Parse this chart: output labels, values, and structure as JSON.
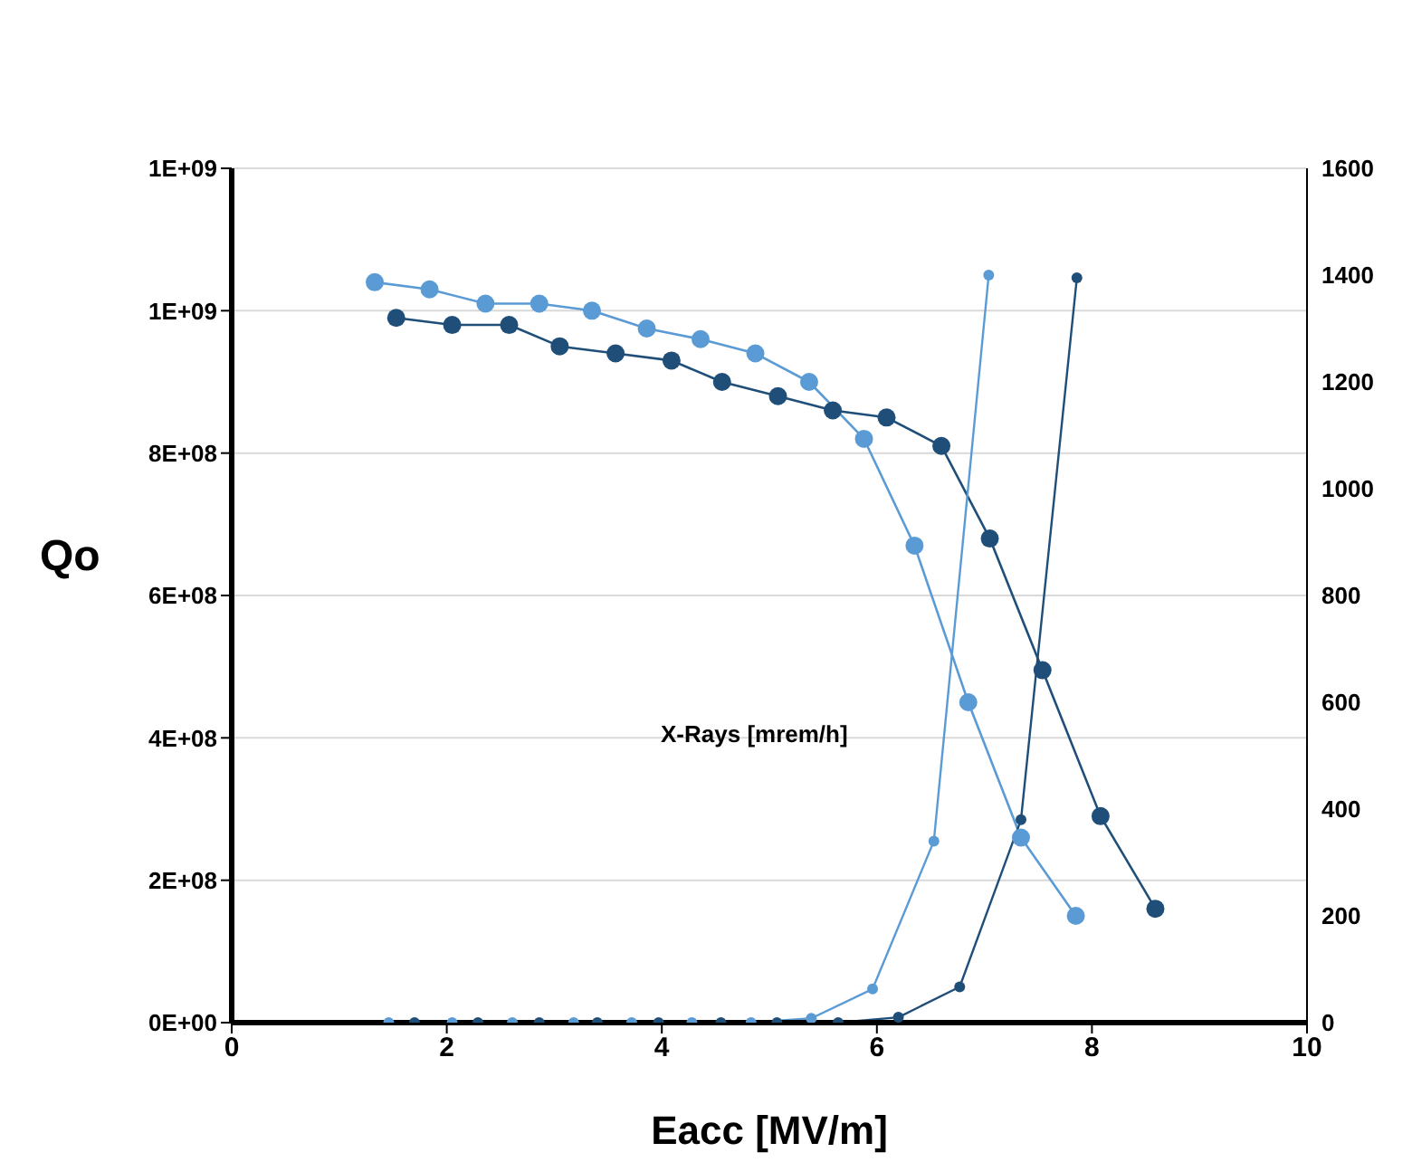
{
  "chart_data": {
    "type": "line",
    "xlabel": "Eacc [MV/m]",
    "ylabel": "Qo",
    "xlim": [
      0,
      10
    ],
    "xticks": [
      0,
      2,
      4,
      6,
      8,
      10
    ],
    "ylim": [
      0,
      1200000000
    ],
    "yticks": [
      {
        "value": 0,
        "label": "0E+00"
      },
      {
        "value": 200000000,
        "label": "2E+08"
      },
      {
        "value": 400000000,
        "label": "4E+08"
      },
      {
        "value": 600000000,
        "label": "6E+08"
      },
      {
        "value": 800000000,
        "label": "8E+08"
      },
      {
        "value": 1000000000,
        "label": "1E+09"
      },
      {
        "value": 1200000000,
        "label": "1E+09"
      }
    ],
    "y2lim": [
      0,
      1600
    ],
    "y2ticks": [
      0,
      200,
      400,
      600,
      800,
      1000,
      1200,
      1400,
      1600
    ],
    "grid": "y",
    "marker": "circle",
    "legend": false,
    "annotations": [
      "X-Rays [mrem/h]"
    ],
    "series": [
      {
        "color": "#5b9bd5",
        "x": [
          1.33,
          1.84,
          2.36,
          2.86,
          3.35,
          3.86,
          4.36,
          4.87,
          5.37,
          5.88,
          6.35,
          6.85,
          7.34,
          7.85
        ],
        "values": [
          1040000000,
          1030000000,
          1010000000,
          1010000000,
          1000000000,
          975000000,
          960000000,
          940000000,
          900000000,
          820000000,
          670000000,
          450000000,
          260000000,
          150000000
        ]
      },
      {
        "color": "#1f4e79",
        "x": [
          1.53,
          2.05,
          2.58,
          3.05,
          3.57,
          4.09,
          4.56,
          5.08,
          5.59,
          6.09,
          6.6,
          7.05,
          7.54,
          8.08,
          8.59
        ],
        "values": [
          990000000,
          980000000,
          980000000,
          950000000,
          940000000,
          930000000,
          900000000,
          880000000,
          860000000,
          850000000,
          810000000,
          680000000,
          495000000,
          290000000,
          160000000
        ]
      },
      {
        "color": "#5b9bd5",
        "axis": "y2",
        "x": [
          1.46,
          2.05,
          2.61,
          3.18,
          3.72,
          4.28,
          4.83,
          5.39,
          5.96,
          6.53,
          7.04
        ],
        "values": [
          0,
          0,
          0,
          0,
          0,
          0,
          0,
          8,
          63,
          340,
          1400
        ]
      },
      {
        "color": "#1f4e79",
        "axis": "y2",
        "x": [
          1.7,
          2.29,
          2.86,
          3.4,
          3.97,
          4.55,
          5.07,
          5.64,
          6.2,
          6.77,
          7.34,
          7.86
        ],
        "values": [
          0,
          0,
          0,
          0,
          0,
          0,
          0,
          0,
          10,
          67,
          380,
          1395
        ]
      }
    ]
  }
}
